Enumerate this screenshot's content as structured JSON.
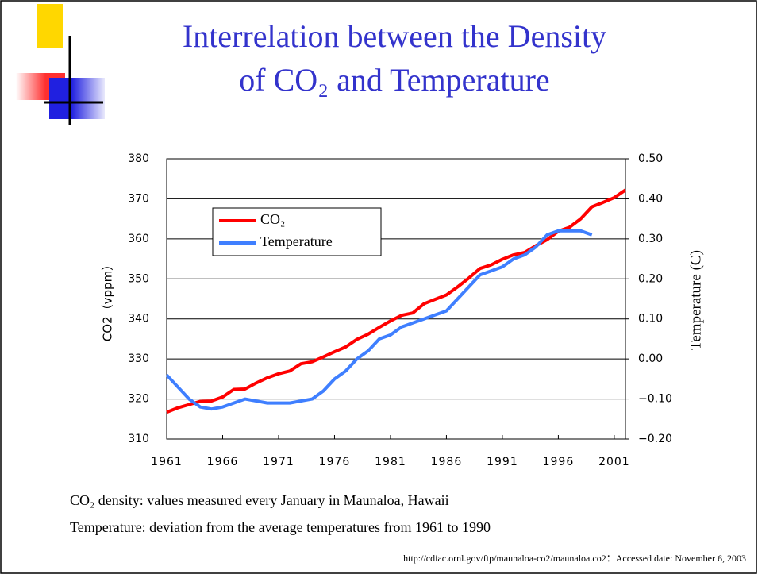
{
  "chart_data": {
    "type": "line",
    "title": [
      "Interrelation between the Density",
      "of CO₂ and Temperature"
    ],
    "x": [
      1961,
      1962,
      1963,
      1964,
      1965,
      1966,
      1967,
      1968,
      1969,
      1970,
      1971,
      1972,
      1973,
      1974,
      1975,
      1976,
      1977,
      1978,
      1979,
      1980,
      1981,
      1982,
      1983,
      1984,
      1985,
      1986,
      1987,
      1988,
      1989,
      1990,
      1991,
      1992,
      1993,
      1994,
      1995,
      1996,
      1997,
      1998,
      1999,
      2000,
      2001,
      2002
    ],
    "xlim": [
      1961,
      2002
    ],
    "xticks": [
      1961,
      1966,
      1971,
      1976,
      1981,
      1986,
      1991,
      1996,
      2001
    ],
    "ylabel": "CO2（vppm）",
    "ylim": [
      310,
      380
    ],
    "yticks": [
      310,
      320,
      330,
      340,
      350,
      360,
      370,
      380
    ],
    "y2label": "Temperature (C)",
    "y2lim": [
      -0.2,
      0.5
    ],
    "y2ticks": [
      {
        "value": -0.2,
        "label": "−0.20"
      },
      {
        "value": -0.1,
        "label": "−0.10"
      },
      {
        "value": 0,
        "label": "0.00"
      },
      {
        "value": 0.1,
        "label": "0.10"
      },
      {
        "value": 0.2,
        "label": "0.20"
      },
      {
        "value": 0.3,
        "label": "0.30"
      },
      {
        "value": 0.4,
        "label": "0.40"
      },
      {
        "value": 0.5,
        "label": "0.50"
      }
    ],
    "grid": true,
    "legend": "upper left",
    "series": [
      {
        "name": "CO₂",
        "color": "#ff0000",
        "values": [
          316.7,
          317.8,
          318.6,
          319.4,
          319.5,
          320.5,
          322.4,
          322.5,
          324.0,
          325.3,
          326.3,
          327.0,
          328.8,
          329.3,
          330.5,
          331.8,
          333.0,
          334.9,
          336.2,
          337.9,
          339.5,
          340.9,
          341.5,
          343.8,
          344.9,
          346.0,
          348.0,
          350.2,
          352.6,
          353.5,
          354.9,
          356.0,
          356.6,
          358.3,
          359.8,
          361.9,
          362.9,
          365.0,
          368.0,
          369.1,
          370.3,
          372.2
        ]
      },
      {
        "name": "Temperature",
        "color": "#3f7fff",
        "axis": "y2",
        "values": [
          -0.04,
          -0.07,
          -0.1,
          -0.12,
          -0.125,
          -0.12,
          -0.11,
          -0.1,
          -0.105,
          -0.11,
          -0.11,
          -0.11,
          -0.105,
          -0.1,
          -0.08,
          -0.05,
          -0.03,
          0.0,
          0.02,
          0.05,
          0.06,
          0.08,
          0.09,
          0.1,
          0.11,
          0.12,
          0.15,
          0.18,
          0.21,
          0.22,
          0.23,
          0.25,
          0.26,
          0.28,
          0.31,
          0.32,
          0.32,
          0.32,
          0.31,
          null,
          null,
          null
        ]
      }
    ],
    "notes": [
      "CO₂ density: values measured every January in Maunaloa, Hawaii",
      "Temperature: deviation from the average temperatures from 1961 to 1990"
    ],
    "source": "http://cdiac.ornl.gov/ftp/maunaloa-co2/maunaloa.co2：Accessed date: November 6, 2003"
  }
}
